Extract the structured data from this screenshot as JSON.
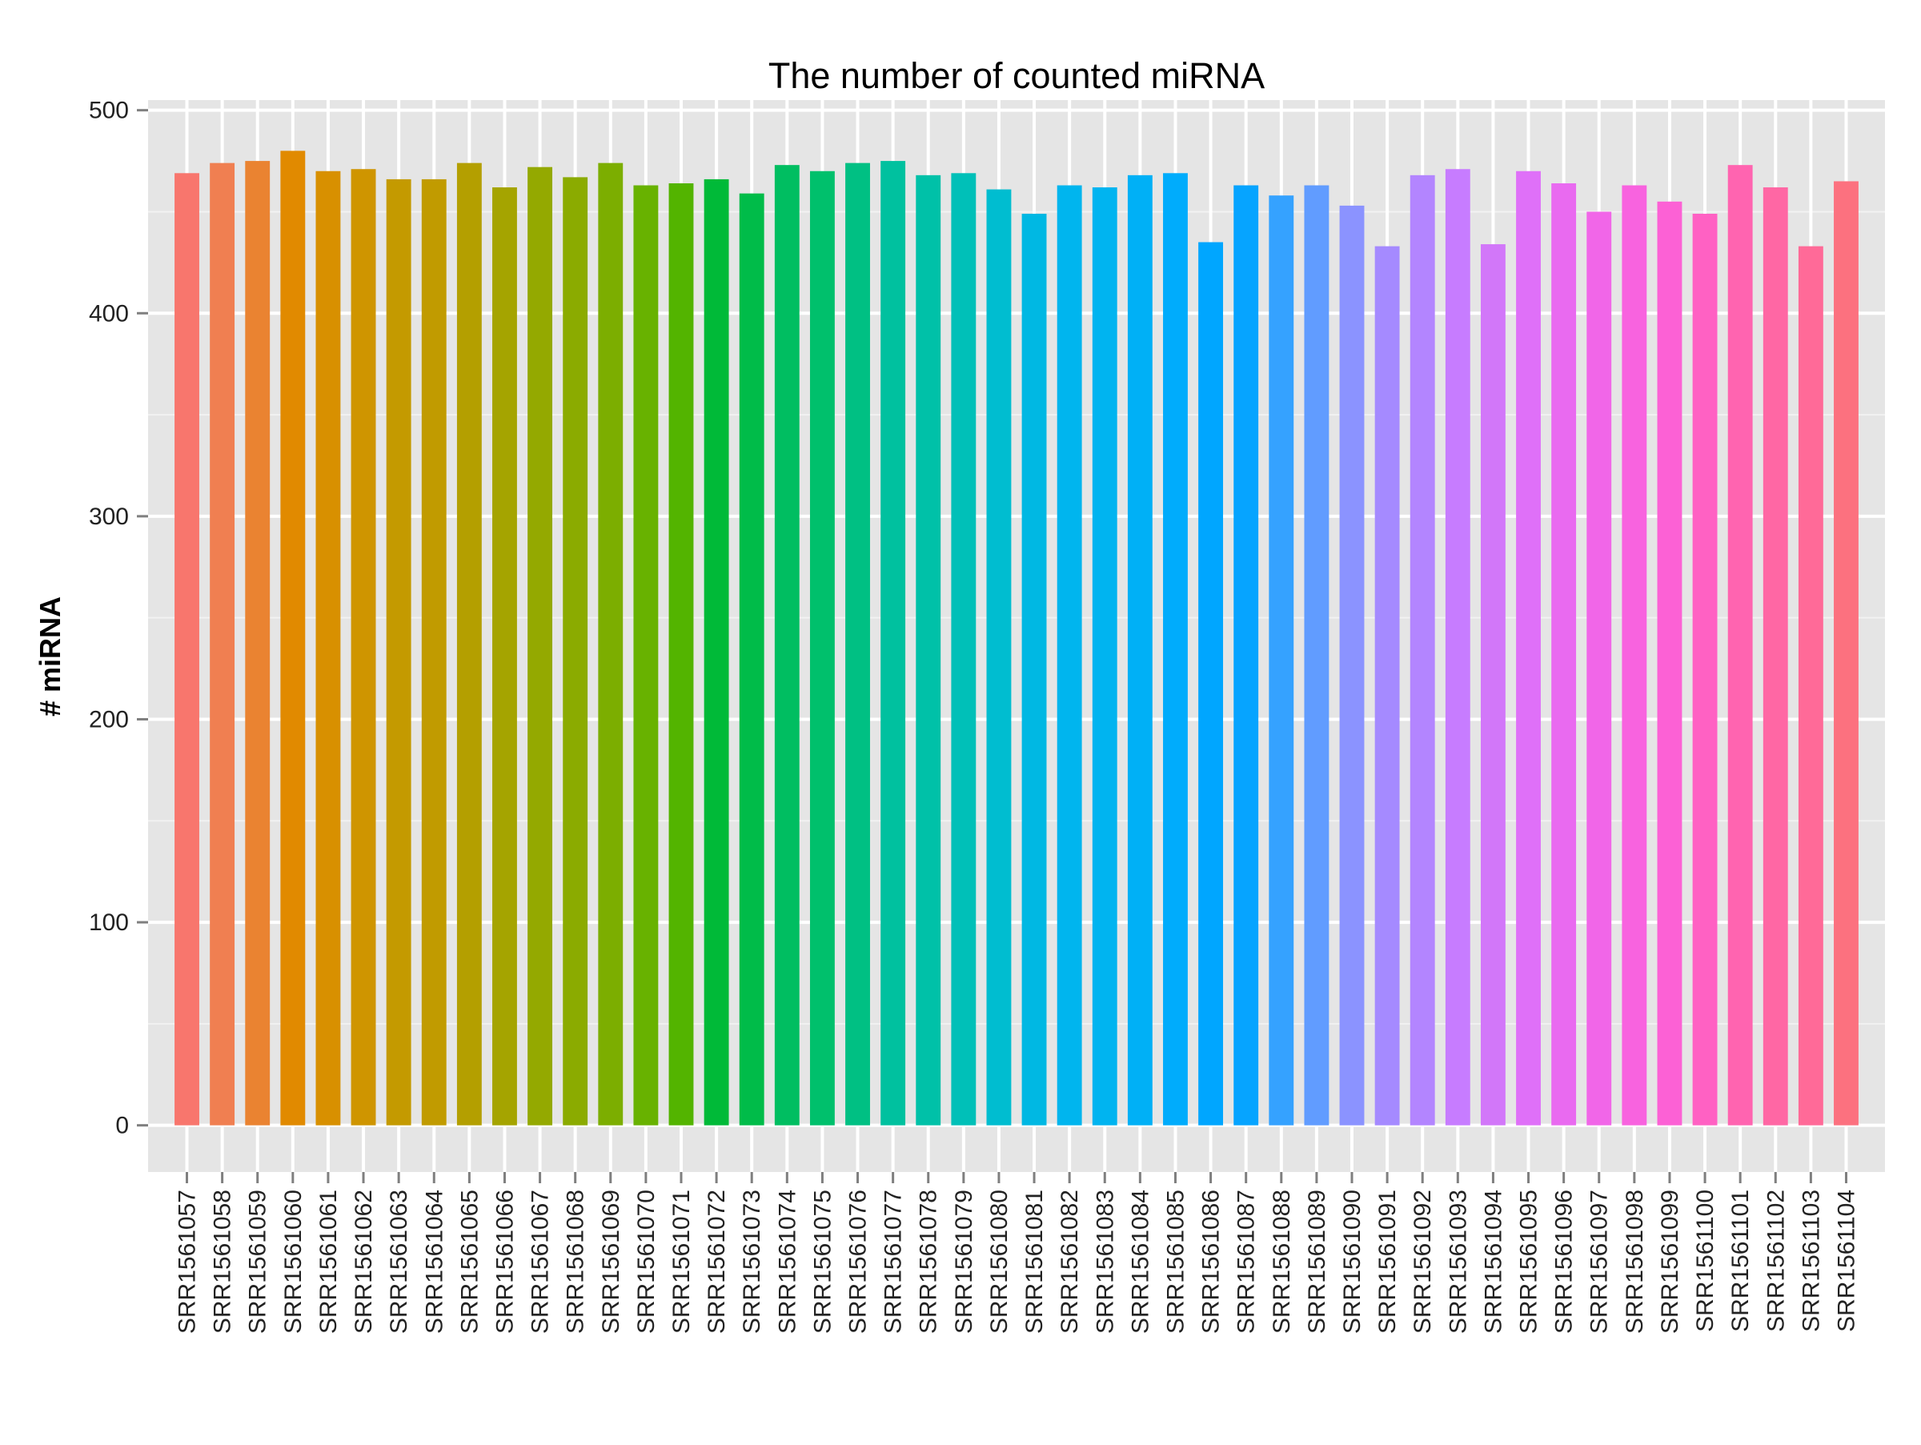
{
  "chart_data": {
    "type": "bar",
    "title": "The number of counted miRNA",
    "xlabel": "",
    "ylabel": "# miRNA",
    "ylim": [
      -23,
      505
    ],
    "yticks": [
      0,
      100,
      200,
      300,
      400,
      500
    ],
    "grid": true,
    "legend": "none",
    "categories": [
      "SRR1561057",
      "SRR1561058",
      "SRR1561059",
      "SRR1561060",
      "SRR1561061",
      "SRR1561062",
      "SRR1561063",
      "SRR1561064",
      "SRR1561065",
      "SRR1561066",
      "SRR1561067",
      "SRR1561068",
      "SRR1561069",
      "SRR1561070",
      "SRR1561071",
      "SRR1561072",
      "SRR1561073",
      "SRR1561074",
      "SRR1561075",
      "SRR1561076",
      "SRR1561077",
      "SRR1561078",
      "SRR1561079",
      "SRR1561080",
      "SRR1561081",
      "SRR1561082",
      "SRR1561083",
      "SRR1561084",
      "SRR1561085",
      "SRR1561086",
      "SRR1561087",
      "SRR1561088",
      "SRR1561089",
      "SRR1561090",
      "SRR1561091",
      "SRR1561092",
      "SRR1561093",
      "SRR1561094",
      "SRR1561095",
      "SRR1561096",
      "SRR1561097",
      "SRR1561098",
      "SRR1561099",
      "SRR1561100",
      "SRR1561101",
      "SRR1561102",
      "SRR1561103",
      "SRR1561104"
    ],
    "values": [
      469,
      474,
      475,
      480,
      470,
      471,
      466,
      466,
      474,
      462,
      472,
      467,
      474,
      463,
      464,
      466,
      459,
      473,
      470,
      474,
      475,
      468,
      469,
      461,
      449,
      463,
      462,
      468,
      469,
      435,
      463,
      458,
      463,
      453,
      433,
      468,
      471,
      434,
      470,
      464,
      450,
      463,
      455,
      449,
      473,
      462,
      433,
      465
    ],
    "colors": [
      "#F8766D",
      "#F07F51",
      "#EA8331",
      "#E18A00",
      "#D89000",
      "#CF9500",
      "#C49A00",
      "#C19B00",
      "#B49F00",
      "#A5A400",
      "#94A900",
      "#8BAB00",
      "#7CAE00",
      "#68B200",
      "#53B400",
      "#00BA38",
      "#00BC49",
      "#00BE61",
      "#00C06C",
      "#00C083",
      "#00C19F",
      "#00C1A8",
      "#00C0B8",
      "#00BDD0",
      "#00B8E3",
      "#00B5EE",
      "#00B4F0",
      "#00B0F6",
      "#00ACFC",
      "#00A6FF",
      "#06A4FF",
      "#35A2FF",
      "#619CFF",
      "#8B93FF",
      "#A58AFF",
      "#B385FF",
      "#C77CFF",
      "#D277F9",
      "#DF70F8",
      "#E96AF0",
      "#F166E8",
      "#F863DF",
      "#FC61D5",
      "#FF61C3",
      "#FF64B0",
      "#FF67A4",
      "#FF6A98",
      "#FC717F"
    ]
  }
}
